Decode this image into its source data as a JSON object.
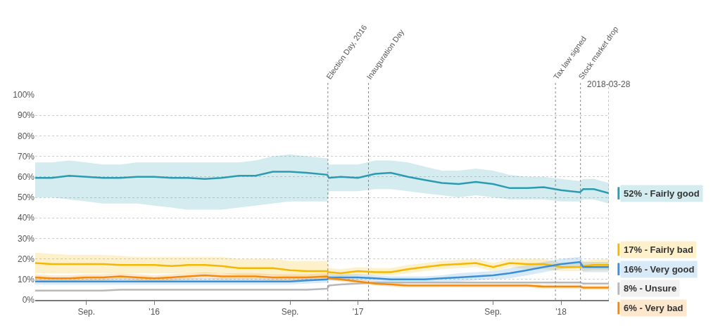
{
  "chart_data": {
    "type": "line",
    "x": [
      "2015-06-01",
      "2015-07-01",
      "2015-08-01",
      "2015-09-01",
      "2015-10-01",
      "2015-11-01",
      "2015-12-01",
      "2016-01-01",
      "2016-02-01",
      "2016-03-01",
      "2016-04-01",
      "2016-05-01",
      "2016-06-01",
      "2016-07-01",
      "2016-08-01",
      "2016-09-01",
      "2016-10-01",
      "2016-11-07",
      "2016-11-10",
      "2016-12-01",
      "2017-01-01",
      "2017-02-01",
      "2017-03-01",
      "2017-04-01",
      "2017-05-01",
      "2017-06-01",
      "2017-07-01",
      "2017-08-01",
      "2017-09-01",
      "2017-10-01",
      "2017-11-01",
      "2017-12-01",
      "2018-01-01",
      "2018-02-04",
      "2018-02-10",
      "2018-03-01",
      "2018-03-28"
    ],
    "series": [
      {
        "name": "52% - Fairly good",
        "color": "#2a9bb0",
        "values": [
          59.5,
          59.5,
          60.5,
          60,
          59.5,
          59.5,
          60,
          60,
          59.5,
          59.5,
          59,
          59.5,
          60.5,
          60.5,
          62.5,
          62.5,
          62,
          61,
          59.5,
          60,
          59.5,
          61.5,
          62,
          60,
          58.5,
          57,
          56.5,
          57.5,
          56.5,
          54.5,
          54.5,
          55,
          53.5,
          52.5,
          54,
          54,
          52
        ],
        "lower": [
          50,
          50,
          49,
          48,
          47,
          47,
          47,
          46,
          45,
          44,
          44,
          44,
          45,
          46,
          47,
          48,
          48,
          48,
          53,
          53,
          53,
          54,
          54,
          53,
          52,
          51,
          50,
          51,
          50,
          49,
          49,
          49,
          48,
          48,
          49,
          49,
          47
        ],
        "upper": [
          67,
          67,
          68,
          67,
          66,
          66,
          67,
          67,
          67,
          67,
          67,
          67,
          67,
          68,
          70,
          71,
          70,
          69,
          66,
          66,
          66,
          68,
          68,
          67,
          65,
          63,
          63,
          64,
          63,
          61,
          60,
          60,
          59,
          58,
          59,
          59,
          57
        ]
      },
      {
        "name": "17% - Fairly bad",
        "color": "#f5b800",
        "values": [
          18,
          17.5,
          17.5,
          17.5,
          17.5,
          17,
          17,
          17,
          16.5,
          17,
          17,
          16.5,
          15.5,
          15.5,
          15.5,
          14.5,
          14,
          14,
          13.5,
          13,
          14,
          13.5,
          13.5,
          15,
          16,
          17,
          17.5,
          18,
          16,
          18,
          17.5,
          17.5,
          16,
          16,
          16.5,
          17,
          17
        ],
        "lower": [
          13,
          13,
          13,
          13,
          13,
          13,
          13,
          13,
          13,
          13,
          13,
          13,
          12,
          12,
          12,
          11,
          11,
          11,
          12,
          11.5,
          12,
          12,
          12,
          13,
          14,
          15,
          15.5,
          16,
          14,
          16,
          15,
          15,
          14,
          14,
          14,
          14.5,
          14.5
        ],
        "upper": [
          23,
          22.5,
          22,
          22,
          22,
          21.5,
          21,
          21,
          21,
          21,
          21,
          21,
          20,
          20,
          20,
          19,
          19,
          19,
          15.5,
          15,
          16,
          15.5,
          15.5,
          17,
          18,
          19,
          19.5,
          20,
          18,
          20,
          20,
          20,
          18,
          18,
          19,
          19.5,
          20
        ]
      },
      {
        "name": "16% - Very good",
        "color": "#3a8fd9",
        "values": [
          9,
          9,
          9,
          9,
          9,
          9,
          9,
          9,
          9,
          9,
          9,
          9,
          9,
          9,
          9,
          9,
          9.5,
          10,
          11,
          11,
          11,
          10.5,
          10,
          10,
          10,
          10.5,
          11,
          11.5,
          12,
          13,
          14.5,
          16,
          17.5,
          18.5,
          16,
          16,
          16
        ],
        "lower": [
          7.5,
          7.5,
          7.5,
          7.5,
          7.5,
          7.5,
          7.5,
          7.5,
          7.5,
          7.5,
          7.5,
          7.5,
          7.5,
          7.5,
          7.5,
          7.5,
          8,
          8.5,
          9.5,
          9.5,
          9.5,
          9,
          8.5,
          8.5,
          8.5,
          9,
          9,
          9.5,
          10,
          10.5,
          12,
          13.5,
          15,
          16,
          13.5,
          13.5,
          13.5
        ],
        "upper": [
          10.5,
          10.5,
          10.5,
          10.5,
          10.5,
          10.5,
          10.5,
          10.5,
          10.5,
          10.5,
          10.5,
          10.5,
          10.5,
          10.5,
          10.5,
          10.5,
          11,
          11.5,
          12.5,
          12.5,
          12.5,
          12,
          11.5,
          11.5,
          11.5,
          12,
          13,
          13.5,
          14,
          15.5,
          17,
          18.5,
          20,
          21,
          18.5,
          18.5,
          18.5
        ]
      },
      {
        "name": "8% - Unsure",
        "color": "#b8b8b8",
        "values": [
          4.5,
          4.5,
          4.5,
          4.5,
          4.5,
          5,
          5,
          5,
          5,
          5,
          5,
          5,
          5,
          5,
          5,
          5,
          5,
          5.5,
          7,
          7.5,
          8,
          8.5,
          8.5,
          8.5,
          8.5,
          8.5,
          8.5,
          8.5,
          8.5,
          8.5,
          8.5,
          8.5,
          8.5,
          8.5,
          8,
          8,
          8
        ]
      },
      {
        "name": "6% - Very bad",
        "color": "#f58a0a",
        "values": [
          11,
          10.5,
          10.5,
          11,
          11,
          11.5,
          11,
          10.5,
          11,
          11.5,
          12,
          11.5,
          11.5,
          11.5,
          11,
          11,
          11,
          11.5,
          10.5,
          10,
          9,
          8,
          7.5,
          7,
          7,
          7,
          7,
          7,
          7,
          7,
          7,
          6.5,
          6.5,
          6.5,
          6,
          6,
          6
        ],
        "lower": [
          9.5,
          9,
          9,
          9.5,
          9.5,
          10,
          9.5,
          9,
          9.5,
          10,
          10.5,
          10,
          10,
          10,
          9.5,
          9.5,
          9.5,
          10,
          9.5,
          9,
          8,
          7,
          6.5,
          6,
          6,
          6,
          6,
          6,
          6,
          6,
          6,
          5.5,
          5.5,
          5.5,
          5,
          5,
          5
        ],
        "upper": [
          12.5,
          12,
          12,
          12.5,
          12.5,
          13,
          12.5,
          12,
          12.5,
          13,
          13.5,
          13,
          13,
          13,
          12.5,
          12.5,
          12.5,
          13,
          11.5,
          11,
          10,
          9,
          8.5,
          8,
          8,
          8,
          8,
          8,
          8,
          8,
          8,
          7.5,
          7.5,
          7.5,
          7,
          7,
          7
        ]
      }
    ],
    "xlim": [
      "2015-06-01",
      "2018-03-28"
    ],
    "xticks": [
      {
        "value": "2015-09-01",
        "label": "Sep."
      },
      {
        "value": "2016-01-01",
        "label": "'16"
      },
      {
        "value": "2016-09-01",
        "label": "Sep."
      },
      {
        "value": "2017-01-01",
        "label": "'17"
      },
      {
        "value": "2017-09-01",
        "label": "Sep."
      },
      {
        "value": "2018-01-01",
        "label": "'18"
      }
    ],
    "ylim": [
      0,
      100
    ],
    "yticks": [
      {
        "value": 0,
        "label": "0%"
      },
      {
        "value": 10,
        "label": "10%"
      },
      {
        "value": 20,
        "label": "20%"
      },
      {
        "value": 30,
        "label": "30%"
      },
      {
        "value": 40,
        "label": "40%"
      },
      {
        "value": 50,
        "label": "50%"
      },
      {
        "value": 60,
        "label": "60%"
      },
      {
        "value": 70,
        "label": "70%"
      },
      {
        "value": 80,
        "label": "80%"
      },
      {
        "value": 90,
        "label": "90%"
      },
      {
        "value": 100,
        "label": "100%"
      }
    ],
    "grid": "y",
    "legend": "right",
    "marker": "none",
    "line_style": "solid",
    "ref_lines": [
      {
        "axis": "x",
        "value": "2016-11-08",
        "label": "Election Day, 2016"
      },
      {
        "axis": "x",
        "value": "2017-01-20",
        "label": "Inauguration Day"
      },
      {
        "axis": "x",
        "value": "2017-12-22",
        "label": "Tax law signed"
      },
      {
        "axis": "x",
        "value": "2018-02-05",
        "label": "Stock market drop"
      },
      {
        "axis": "x",
        "value": "2018-03-28"
      }
    ],
    "annotations": [
      {
        "text": "2018-03-28",
        "x": "2018-03-28",
        "y": 100
      }
    ]
  }
}
